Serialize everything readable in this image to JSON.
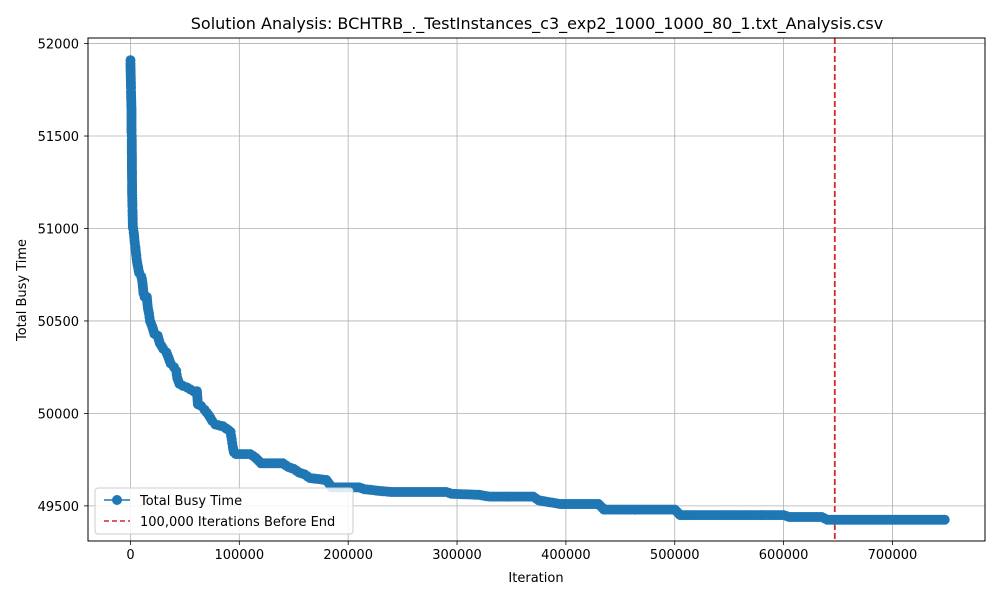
{
  "chart_data": {
    "type": "line",
    "title": "Solution Analysis: BCHTRB_._TestInstances_c3_exp2_1000_1000_80_1.txt_Analysis.csv",
    "xlabel": "Iteration",
    "ylabel": "Total Busy Time",
    "xlim": [
      -39000,
      785000
    ],
    "ylim": [
      49310,
      52030
    ],
    "xticks": [
      0,
      100000,
      200000,
      300000,
      400000,
      500000,
      600000,
      700000
    ],
    "yticks": [
      49500,
      50000,
      50500,
      51000,
      51500,
      52000
    ],
    "grid": true,
    "legend_position": "lower-left",
    "series": [
      {
        "name": "Total Busy Time",
        "color": "#1f77b4",
        "marker": "circle",
        "points": [
          [
            0,
            51910
          ],
          [
            0,
            51890
          ],
          [
            500,
            51760
          ],
          [
            500,
            51740
          ],
          [
            1000,
            51630
          ],
          [
            1000,
            51520
          ],
          [
            1200,
            51500
          ],
          [
            1200,
            51480
          ],
          [
            1400,
            51290
          ],
          [
            1500,
            51240
          ],
          [
            1500,
            51210
          ],
          [
            1600,
            51180
          ],
          [
            1700,
            51150
          ],
          [
            1800,
            51120
          ],
          [
            1900,
            51100
          ],
          [
            2200,
            51010
          ],
          [
            2500,
            51000
          ],
          [
            3000,
            50980
          ],
          [
            3500,
            50950
          ],
          [
            4000,
            50920
          ],
          [
            4500,
            50900
          ],
          [
            5000,
            50870
          ],
          [
            6000,
            50820
          ],
          [
            7000,
            50790
          ],
          [
            8000,
            50760
          ],
          [
            10000,
            50740
          ],
          [
            11000,
            50710
          ],
          [
            12000,
            50650
          ],
          [
            13000,
            50630
          ],
          [
            15000,
            50630
          ],
          [
            16000,
            50570
          ],
          [
            17000,
            50540
          ],
          [
            18000,
            50500
          ],
          [
            20000,
            50470
          ],
          [
            22000,
            50430
          ],
          [
            25000,
            50420
          ],
          [
            27000,
            50380
          ],
          [
            30000,
            50350
          ],
          [
            33000,
            50330
          ],
          [
            35000,
            50300
          ],
          [
            37000,
            50270
          ],
          [
            40000,
            50250
          ],
          [
            42000,
            50230
          ],
          [
            43000,
            50190
          ],
          [
            45000,
            50160
          ],
          [
            48000,
            50150
          ],
          [
            52000,
            50140
          ],
          [
            55000,
            50130
          ],
          [
            58000,
            50120
          ],
          [
            61000,
            50120
          ],
          [
            62000,
            50050
          ],
          [
            65000,
            50040
          ],
          [
            68000,
            50020
          ],
          [
            72000,
            49990
          ],
          [
            75000,
            49960
          ],
          [
            78000,
            49940
          ],
          [
            85000,
            49930
          ],
          [
            90000,
            49910
          ],
          [
            92000,
            49900
          ],
          [
            93000,
            49860
          ],
          [
            94000,
            49820
          ],
          [
            95000,
            49790
          ],
          [
            97000,
            49780
          ],
          [
            110000,
            49780
          ],
          [
            115000,
            49760
          ],
          [
            120000,
            49730
          ],
          [
            140000,
            49730
          ],
          [
            145000,
            49710
          ],
          [
            150000,
            49700
          ],
          [
            155000,
            49680
          ],
          [
            160000,
            49670
          ],
          [
            165000,
            49650
          ],
          [
            180000,
            49640
          ],
          [
            185000,
            49600
          ],
          [
            210000,
            49600
          ],
          [
            215000,
            49590
          ],
          [
            230000,
            49580
          ],
          [
            240000,
            49575
          ],
          [
            290000,
            49575
          ],
          [
            295000,
            49565
          ],
          [
            320000,
            49560
          ],
          [
            330000,
            49550
          ],
          [
            370000,
            49550
          ],
          [
            375000,
            49530
          ],
          [
            385000,
            49520
          ],
          [
            395000,
            49510
          ],
          [
            430000,
            49510
          ],
          [
            435000,
            49480
          ],
          [
            500000,
            49480
          ],
          [
            505000,
            49450
          ],
          [
            600000,
            49450
          ],
          [
            605000,
            49440
          ],
          [
            635000,
            49440
          ],
          [
            640000,
            49425
          ],
          [
            700000,
            49425
          ],
          [
            748000,
            49425
          ]
        ]
      }
    ],
    "reference_line": {
      "name": "100,000 Iterations Before End",
      "orientation": "vertical",
      "x": 647000,
      "color": "#d62728",
      "style": "dashed"
    }
  },
  "legend": {
    "series_label": "Total Busy Time",
    "reference_label": "100,000 Iterations Before End"
  }
}
